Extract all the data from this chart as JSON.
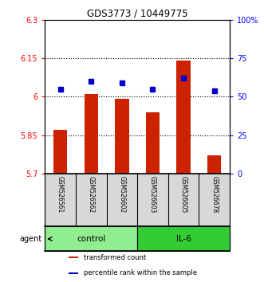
{
  "title": "GDS3773 / 10449775",
  "samples": [
    "GSM526561",
    "GSM526562",
    "GSM526602",
    "GSM526603",
    "GSM526605",
    "GSM526678"
  ],
  "bar_values": [
    5.87,
    6.01,
    5.99,
    5.94,
    6.14,
    5.77
  ],
  "percentile_values": [
    55,
    60,
    59,
    55,
    62,
    54
  ],
  "bar_bottom": 5.7,
  "ylim_left": [
    5.7,
    6.3
  ],
  "ylim_right": [
    0,
    100
  ],
  "yticks_left": [
    5.7,
    5.85,
    6.0,
    6.15,
    6.3
  ],
  "ytick_labels_left": [
    "5.7",
    "5.85",
    "6",
    "6.15",
    "6.3"
  ],
  "yticks_right": [
    0,
    25,
    50,
    75,
    100
  ],
  "ytick_labels_right": [
    "0",
    "25",
    "50",
    "75",
    "100%"
  ],
  "hlines": [
    5.85,
    6.0,
    6.15
  ],
  "groups": [
    {
      "label": "control",
      "indices": [
        0,
        1,
        2
      ],
      "color": "#90EE90"
    },
    {
      "label": "IL-6",
      "indices": [
        3,
        4,
        5
      ],
      "color": "#33CC33"
    }
  ],
  "bar_color": "#CC2200",
  "dot_color": "#0000CC",
  "agent_label": "agent",
  "legend_items": [
    {
      "label": "transformed count",
      "color": "#CC2200"
    },
    {
      "label": "percentile rank within the sample",
      "color": "#0000CC"
    }
  ]
}
